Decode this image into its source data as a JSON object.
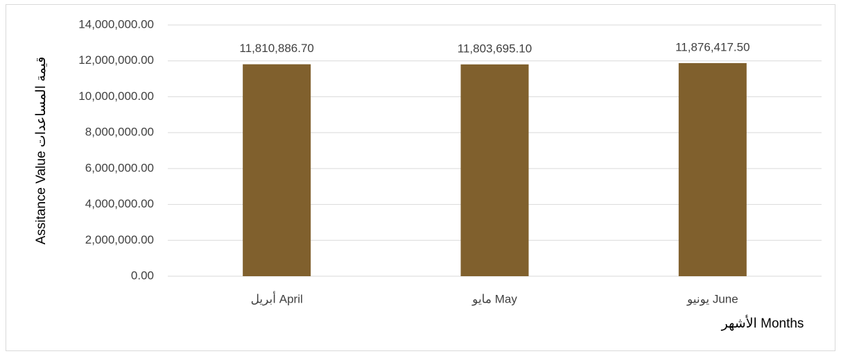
{
  "chart_data": {
    "type": "bar",
    "categories": [
      "أبريل April",
      "مايو May",
      "يونيو June"
    ],
    "values": [
      11810886.7,
      11803695.1,
      11876417.5
    ],
    "value_labels": [
      "11,810,886.70",
      "11,803,695.10",
      "11,876,417.50"
    ],
    "color": "#80602d",
    "x_label": "الأشهر Months",
    "y_label": "Assitance Value قيمة المساعدات",
    "ylim": [
      0,
      14000000
    ],
    "yticks": [
      {
        "value": 0,
        "label": "0.00"
      },
      {
        "value": 2000000,
        "label": "2,000,000.00"
      },
      {
        "value": 4000000,
        "label": "4,000,000.00"
      },
      {
        "value": 6000000,
        "label": "6,000,000.00"
      },
      {
        "value": 8000000,
        "label": "8,000,000.00"
      },
      {
        "value": 10000000,
        "label": "10,000,000.00"
      },
      {
        "value": 12000000,
        "label": "12,000,000.00"
      },
      {
        "value": 14000000,
        "label": "14,000,000.00"
      }
    ],
    "grid": true
  }
}
